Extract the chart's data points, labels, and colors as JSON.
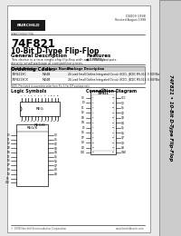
{
  "bg_color": "#e8e8e8",
  "page_bg": "#ffffff",
  "title_part": "74F821",
  "title_desc": "10-Bit D-Type Flip-Flop",
  "section_general": "General Description",
  "section_features": "Features",
  "general_text": "This device is a true single-chip flip-flop with a 24-PIN high\ndensity small package at competitive prices.",
  "features_text": "■ 3-STATE outputs",
  "section_ordering": "Ordering Code:",
  "ordering_cols": [
    "Order Number",
    "Package Number",
    "Package Description"
  ],
  "ordering_rows": [
    [
      "74F821SC",
      "M24B",
      "24-Lead Small Outline Integrated Circuit (SOIC), JEDEC MS-013, 0.300 Wide"
    ],
    [
      "74F821SCX",
      "M24B",
      "24-Lead Small Outline Integrated Circuit (SOIC), JEDEC MS-013, 0.300 Wide"
    ]
  ],
  "section_logic": "Logic Symbols",
  "section_connection": "Connection Diagram",
  "sidebar_text": "74F821 • 10-Bit D-Type Flip-Flop",
  "doc_number": "DS009 1998",
  "revised": "Revised August 1998",
  "copyright": "© 1998 Fairchild Semiconductor Corporation",
  "www": "www.fairchildsemi.com",
  "note_text": "NOTE: Pins shown in order are for SOIC package only. For DIP package refer to connection diagram.",
  "ic_top_labels_top": [
    "1",
    "2",
    "3",
    "4",
    "5",
    "6",
    "7",
    "8",
    "9",
    "10",
    "11",
    "12"
  ],
  "ic_top_labels_bot": [
    "24",
    "23",
    "22",
    "21",
    "20",
    "19",
    "18",
    "17",
    "16",
    "15",
    "14",
    "13"
  ],
  "cd_labels_left": [
    "OE",
    "D0",
    "D1",
    "D2",
    "D3",
    "D4",
    "D5",
    "D6",
    "D7",
    "D8",
    "D9",
    "CLK"
  ],
  "cd_labels_right": [
    "VCC",
    "Q0",
    "Q1",
    "Q2",
    "Q3",
    "Q4",
    "Q5",
    "Q6",
    "Q7",
    "Q8",
    "Q9",
    "GND"
  ],
  "cd_pin_nums_left": [
    "1",
    "2",
    "3",
    "4",
    "5",
    "6",
    "7",
    "8",
    "9",
    "10",
    "11",
    "12"
  ],
  "cd_pin_nums_right": [
    "24",
    "23",
    "22",
    "21",
    "20",
    "19",
    "18",
    "17",
    "16",
    "15",
    "14",
    "13"
  ]
}
